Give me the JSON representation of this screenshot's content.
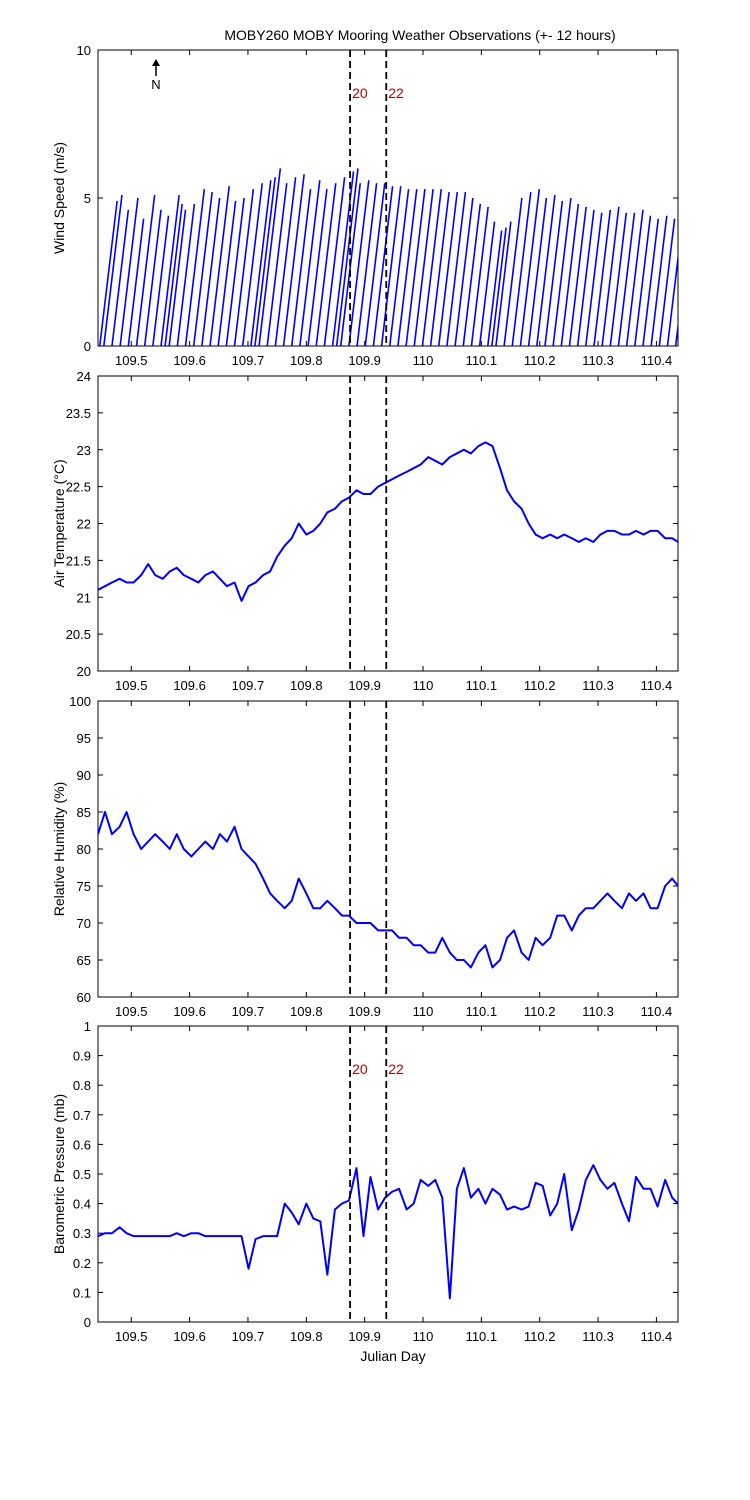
{
  "title": "MOBY260 MOBY Mooring Weather Observations (+- 12 hours)",
  "colors": {
    "series": "#0000ff",
    "marker_label": "#c00000",
    "axis": "#000000",
    "background": "#ffffff"
  },
  "x_ticks": [
    "109.5",
    "109.6",
    "109.7",
    "109.8",
    "109.9",
    "110",
    "110.1",
    "110.2",
    "110.3",
    "110.4"
  ],
  "markers": [
    {
      "x": 109.875,
      "label": "20"
    },
    {
      "x": 109.937,
      "label": "22"
    }
  ],
  "north_label": "N",
  "xlabel": "Julian Day",
  "chart_data": [
    {
      "type": "line",
      "subtype": "wind-vector-stick",
      "ylabel": "Wind Speed (m/s)",
      "xlim": [
        109.443,
        110.437
      ],
      "ylim": [
        0,
        10
      ],
      "yticks": [
        "0",
        "5",
        "10"
      ],
      "series": [
        {
          "x": [
            109.446,
            109.453,
            109.467,
            109.481,
            109.495,
            109.509,
            109.523,
            109.537,
            109.551,
            109.558,
            109.565,
            109.579,
            109.593,
            109.607,
            109.621,
            109.635,
            109.649,
            109.663,
            109.677,
            109.691,
            109.705,
            109.712,
            109.719,
            109.733,
            109.747,
            109.761,
            109.775,
            109.789,
            109.803,
            109.817,
            109.831,
            109.845,
            109.852,
            109.859,
            109.873,
            109.887,
            109.901,
            109.915,
            109.929,
            109.943,
            109.957,
            109.971,
            109.985,
            109.999,
            110.013,
            110.027,
            110.041,
            110.055,
            110.069,
            110.083,
            110.097,
            110.111,
            110.118,
            110.125,
            110.139,
            110.153,
            110.167,
            110.181,
            110.195,
            110.209,
            110.223,
            110.237,
            110.251,
            110.265,
            110.279,
            110.293,
            110.307,
            110.321,
            110.335,
            110.349,
            110.363,
            110.377,
            110.391,
            110.405,
            110.419,
            110.433
          ],
          "values": [
            4.9,
            5.1,
            4.6,
            5.0,
            4.3,
            5.1,
            4.6,
            4.4,
            5.1,
            4.8,
            4.6,
            4.8,
            5.3,
            5.2,
            5.0,
            5.4,
            4.9,
            5.0,
            5.3,
            5.5,
            5.6,
            5.7,
            6.0,
            5.5,
            5.7,
            5.8,
            5.3,
            5.6,
            5.3,
            5.5,
            5.7,
            5.9,
            6.0,
            5.5,
            5.6,
            5.5,
            5.5,
            5.4,
            5.4,
            5.3,
            5.3,
            5.3,
            5.3,
            5.3,
            5.2,
            5.2,
            5.2,
            5.0,
            4.8,
            4.7,
            4.2,
            3.9,
            4.0,
            4.2,
            5.0,
            5.2,
            5.3,
            5.0,
            5.1,
            4.9,
            5.0,
            4.8,
            4.7,
            4.6,
            4.5,
            4.6,
            4.7,
            4.5,
            4.5,
            4.6,
            4.4,
            4.3,
            4.4,
            4.3,
            4.2,
            4.3
          ],
          "direction": "lines tilt toward upper right (wind vectors)"
        }
      ]
    },
    {
      "type": "line",
      "ylabel": "Air Temperature (°C)",
      "xlim": [
        109.443,
        110.437
      ],
      "ylim": [
        20,
        24
      ],
      "yticks": [
        "20",
        "20.5",
        "21",
        "21.5",
        "22",
        "22.5",
        "23",
        "23.5",
        "24"
      ],
      "series": [
        {
          "x": [
            109.443,
            109.455,
            109.467,
            109.48,
            109.492,
            109.504,
            109.517,
            109.529,
            109.541,
            109.554,
            109.566,
            109.578,
            109.59,
            109.603,
            109.615,
            109.627,
            109.64,
            109.652,
            109.664,
            109.677,
            109.689,
            109.701,
            109.713,
            109.726,
            109.738,
            109.75,
            109.763,
            109.775,
            109.787,
            109.8,
            109.812,
            109.824,
            109.836,
            109.849,
            109.861,
            109.873,
            109.886,
            109.898,
            109.91,
            109.923,
            109.935,
            109.947,
            109.959,
            109.972,
            109.984,
            109.996,
            110.009,
            110.021,
            110.033,
            110.046,
            110.058,
            110.07,
            110.082,
            110.095,
            110.107,
            110.119,
            110.132,
            110.144,
            110.156,
            110.169,
            110.181,
            110.193,
            110.205,
            110.218,
            110.23,
            110.242,
            110.255,
            110.267,
            110.279,
            110.292,
            110.304,
            110.316,
            110.328,
            110.341,
            110.353,
            110.365,
            110.378,
            110.39,
            110.402,
            110.415,
            110.427,
            110.437
          ],
          "values": [
            21.1,
            21.15,
            21.2,
            21.25,
            21.2,
            21.2,
            21.3,
            21.45,
            21.3,
            21.25,
            21.35,
            21.4,
            21.3,
            21.25,
            21.2,
            21.3,
            21.35,
            21.25,
            21.15,
            21.2,
            20.95,
            21.15,
            21.2,
            21.3,
            21.35,
            21.55,
            21.7,
            21.8,
            22.0,
            21.85,
            21.9,
            22.0,
            22.15,
            22.2,
            22.3,
            22.35,
            22.45,
            22.4,
            22.4,
            22.5,
            22.55,
            22.6,
            22.65,
            22.7,
            22.75,
            22.8,
            22.9,
            22.85,
            22.8,
            22.9,
            22.95,
            23.0,
            22.95,
            23.05,
            23.1,
            23.05,
            22.75,
            22.45,
            22.3,
            22.2,
            22.0,
            21.85,
            21.8,
            21.85,
            21.8,
            21.85,
            21.8,
            21.75,
            21.8,
            21.75,
            21.85,
            21.9,
            21.9,
            21.85,
            21.85,
            21.9,
            21.85,
            21.9,
            21.9,
            21.8,
            21.8,
            21.75
          ],
          "name": ""
        }
      ]
    },
    {
      "type": "line",
      "ylabel": "Relative Humidity (%)",
      "xlim": [
        109.443,
        110.437
      ],
      "ylim": [
        60,
        100
      ],
      "yticks": [
        "60",
        "65",
        "70",
        "75",
        "80",
        "85",
        "90",
        "95",
        "100"
      ],
      "series": [
        {
          "x": [
            109.443,
            109.455,
            109.467,
            109.48,
            109.492,
            109.504,
            109.517,
            109.529,
            109.541,
            109.554,
            109.566,
            109.578,
            109.59,
            109.603,
            109.615,
            109.627,
            109.64,
            109.652,
            109.664,
            109.677,
            109.689,
            109.701,
            109.713,
            109.726,
            109.738,
            109.75,
            109.763,
            109.775,
            109.787,
            109.8,
            109.812,
            109.824,
            109.836,
            109.849,
            109.861,
            109.873,
            109.886,
            109.898,
            109.91,
            109.923,
            109.935,
            109.947,
            109.959,
            109.972,
            109.984,
            109.996,
            110.009,
            110.021,
            110.033,
            110.046,
            110.058,
            110.07,
            110.082,
            110.095,
            110.107,
            110.119,
            110.132,
            110.144,
            110.156,
            110.169,
            110.181,
            110.193,
            110.205,
            110.218,
            110.23,
            110.242,
            110.255,
            110.267,
            110.279,
            110.292,
            110.304,
            110.316,
            110.328,
            110.341,
            110.353,
            110.365,
            110.378,
            110.39,
            110.402,
            110.415,
            110.427,
            110.437
          ],
          "values": [
            82,
            85,
            82,
            83,
            85,
            82,
            80,
            81,
            82,
            81,
            80,
            82,
            80,
            79,
            80,
            81,
            80,
            82,
            81,
            83,
            80,
            79,
            78,
            76,
            74,
            73,
            72,
            73,
            76,
            74,
            72,
            72,
            73,
            72,
            71,
            71,
            70,
            70,
            70,
            69,
            69,
            69,
            68,
            68,
            67,
            67,
            66,
            66,
            68,
            66,
            65,
            65,
            64,
            66,
            67,
            64,
            65,
            68,
            69,
            66,
            65,
            68,
            67,
            68,
            71,
            71,
            69,
            71,
            72,
            72,
            73,
            74,
            73,
            72,
            74,
            73,
            74,
            72,
            72,
            75,
            76,
            75
          ],
          "name": ""
        }
      ]
    },
    {
      "type": "line",
      "ylabel": "Barometric Pressure (mb)",
      "xlim": [
        109.443,
        110.437
      ],
      "ylim": [
        0,
        1
      ],
      "yticks": [
        "0",
        "0.1",
        "0.2",
        "0.3",
        "0.4",
        "0.5",
        "0.6",
        "0.7",
        "0.8",
        "0.9",
        "1"
      ],
      "series": [
        {
          "x": [
            109.443,
            109.455,
            109.467,
            109.48,
            109.492,
            109.504,
            109.517,
            109.529,
            109.541,
            109.554,
            109.566,
            109.578,
            109.59,
            109.603,
            109.615,
            109.627,
            109.64,
            109.652,
            109.664,
            109.677,
            109.689,
            109.701,
            109.713,
            109.726,
            109.738,
            109.75,
            109.763,
            109.775,
            109.787,
            109.8,
            109.812,
            109.824,
            109.836,
            109.849,
            109.861,
            109.873,
            109.886,
            109.898,
            109.91,
            109.923,
            109.935,
            109.947,
            109.959,
            109.972,
            109.984,
            109.996,
            110.009,
            110.021,
            110.033,
            110.046,
            110.058,
            110.07,
            110.082,
            110.095,
            110.107,
            110.119,
            110.132,
            110.144,
            110.156,
            110.169,
            110.181,
            110.193,
            110.205,
            110.218,
            110.23,
            110.242,
            110.255,
            110.267,
            110.279,
            110.292,
            110.304,
            110.316,
            110.328,
            110.341,
            110.353,
            110.365,
            110.378,
            110.39,
            110.402,
            110.415,
            110.427,
            110.437
          ],
          "values": [
            0.29,
            0.3,
            0.3,
            0.32,
            0.3,
            0.29,
            0.29,
            0.29,
            0.29,
            0.29,
            0.29,
            0.3,
            0.29,
            0.3,
            0.3,
            0.29,
            0.29,
            0.29,
            0.29,
            0.29,
            0.29,
            0.18,
            0.28,
            0.29,
            0.29,
            0.29,
            0.4,
            0.37,
            0.33,
            0.4,
            0.35,
            0.34,
            0.16,
            0.38,
            0.4,
            0.41,
            0.52,
            0.29,
            0.49,
            0.38,
            0.42,
            0.44,
            0.45,
            0.38,
            0.4,
            0.48,
            0.46,
            0.48,
            0.42,
            0.08,
            0.45,
            0.52,
            0.42,
            0.45,
            0.4,
            0.45,
            0.43,
            0.38,
            0.39,
            0.38,
            0.39,
            0.47,
            0.46,
            0.36,
            0.4,
            0.5,
            0.31,
            0.38,
            0.48,
            0.53,
            0.48,
            0.45,
            0.47,
            0.4,
            0.34,
            0.49,
            0.45,
            0.45,
            0.39,
            0.48,
            0.42,
            0.4
          ],
          "name": ""
        }
      ]
    }
  ]
}
